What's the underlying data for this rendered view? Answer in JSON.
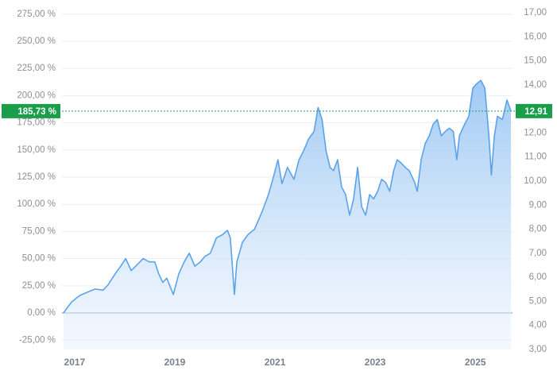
{
  "chart_data": {
    "type": "area",
    "x": [
      2016.78,
      2016.84,
      2016.94,
      2017.1,
      2017.25,
      2017.41,
      2017.57,
      2017.67,
      2017.81,
      2017.92,
      2018.02,
      2018.13,
      2018.24,
      2018.37,
      2018.49,
      2018.6,
      2018.68,
      2018.76,
      2018.84,
      2018.97,
      2019.08,
      2019.19,
      2019.29,
      2019.4,
      2019.51,
      2019.6,
      2019.71,
      2019.83,
      2019.95,
      2020.05,
      2020.11,
      2020.19,
      2020.24,
      2020.35,
      2020.46,
      2020.59,
      2020.75,
      2020.87,
      2020.98,
      2021.06,
      2021.14,
      2021.25,
      2021.38,
      2021.48,
      2021.57,
      2021.67,
      2021.78,
      2021.86,
      2021.94,
      2022.02,
      2022.1,
      2022.17,
      2022.25,
      2022.33,
      2022.41,
      2022.49,
      2022.57,
      2022.65,
      2022.73,
      2022.81,
      2022.89,
      2022.97,
      2023.05,
      2023.13,
      2023.21,
      2023.29,
      2023.37,
      2023.44,
      2023.52,
      2023.6,
      2023.68,
      2023.79,
      2023.84,
      2023.92,
      2024.0,
      2024.08,
      2024.16,
      2024.24,
      2024.32,
      2024.4,
      2024.48,
      2024.56,
      2024.63,
      2024.68,
      2024.79,
      2024.87,
      2024.95,
      2025.03,
      2025.11,
      2025.19,
      2025.27,
      2025.32,
      2025.38,
      2025.44,
      2025.54,
      2025.63,
      2025.71
    ],
    "series": [
      {
        "color": "#5ba3e8",
        "values": [
          0,
          4,
          10,
          16,
          19,
          22,
          21,
          26,
          36,
          43,
          50,
          39,
          44,
          50,
          47,
          47,
          36,
          28,
          32,
          17,
          36,
          47,
          55,
          43,
          47,
          52,
          55,
          69,
          72,
          76,
          69,
          17,
          47,
          65,
          72,
          77,
          94,
          109,
          127,
          141,
          119,
          134,
          123,
          141,
          149,
          160,
          167,
          189,
          178,
          149,
          134,
          131,
          141,
          116,
          109,
          90,
          105,
          134,
          98,
          90,
          109,
          105,
          112,
          123,
          120,
          112,
          131,
          141,
          138,
          134,
          131,
          120,
          112,
          141,
          156,
          163,
          174,
          178,
          163,
          167,
          170,
          167,
          141,
          163,
          174,
          181,
          207,
          211,
          214,
          207,
          163,
          127,
          163,
          181,
          178,
          196,
          185.73
        ]
      }
    ],
    "current": {
      "value": 185.73,
      "label": "185,73 %",
      "y2_value": 12.91,
      "y2_label": "12,91"
    },
    "xlim": [
      2016.78,
      2025.71
    ],
    "xticks": [
      2017,
      2019,
      2021,
      2023,
      2025
    ],
    "ylim": [
      -33.6,
      276.3
    ],
    "yticks": [
      {
        "value": -25,
        "label": "-25,00 %"
      },
      {
        "value": 0,
        "label": "0,00 %"
      },
      {
        "value": 25,
        "label": "25,00 %"
      },
      {
        "value": 50,
        "label": "50,00 %"
      },
      {
        "value": 75,
        "label": "75,00 %"
      },
      {
        "value": 100,
        "label": "100,00 %"
      },
      {
        "value": 125,
        "label": "125,00 %"
      },
      {
        "value": 150,
        "label": "150,00 %"
      },
      {
        "value": 175,
        "label": "175,00 %"
      },
      {
        "value": 200,
        "label": "200,00 %"
      },
      {
        "value": 225,
        "label": "225,00 %"
      },
      {
        "value": 250,
        "label": "250,00 %"
      },
      {
        "value": 275,
        "label": "275,00 %"
      }
    ],
    "y2lim": [
      3,
      17
    ],
    "y2ticks": [
      {
        "value": 3,
        "label": "3,00"
      },
      {
        "value": 4,
        "label": "4,00"
      },
      {
        "value": 5,
        "label": "5,00"
      },
      {
        "value": 6,
        "label": "6,00"
      },
      {
        "value": 7,
        "label": "7,00"
      },
      {
        "value": 8,
        "label": "8,00"
      },
      {
        "value": 9,
        "label": "9,00"
      },
      {
        "value": 10,
        "label": "10,00"
      },
      {
        "value": 11,
        "label": "11,00"
      },
      {
        "value": 12,
        "label": "12,00"
      },
      {
        "value": 13,
        "label": "13,00"
      },
      {
        "value": 14,
        "label": "14,00"
      },
      {
        "value": 15,
        "label": "15,00"
      },
      {
        "value": 16,
        "label": "16,00"
      },
      {
        "value": 17,
        "label": "17,00"
      }
    ],
    "grid": true
  }
}
